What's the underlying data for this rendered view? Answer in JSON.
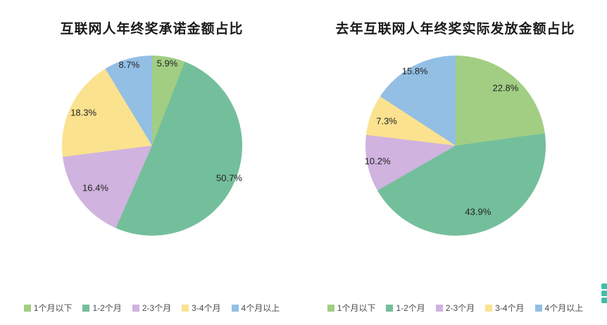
{
  "chart_data": [
    {
      "type": "pie",
      "title": "互联网人年终奖承诺金额占比",
      "categories": [
        "1个月以下",
        "1-2个月",
        "2-3个月",
        "3-4个月",
        "4个月以上"
      ],
      "values": [
        5.9,
        50.7,
        16.4,
        18.3,
        8.7
      ],
      "labels": [
        "5.9%",
        "50.7%",
        "16.4%",
        "18.3%",
        "8.7%"
      ],
      "colors": [
        "#a2ce84",
        "#74bf9b",
        "#d0b3df",
        "#fae28f",
        "#93bfe5"
      ],
      "start_angle_deg": 0,
      "direction": "clockwise",
      "label_radius": [
        0.93,
        0.93,
        0.78,
        0.84,
        0.93
      ],
      "legend_position": "bottom"
    },
    {
      "type": "pie",
      "title": "去年互联网人年终奖实际发放金额占比",
      "categories": [
        "1个月以下",
        "1-2个月",
        "2-3个月",
        "3-4个月",
        "4个月以上"
      ],
      "values": [
        22.8,
        43.9,
        10.2,
        7.3,
        15.8
      ],
      "labels": [
        "22.8%",
        "43.9%",
        "10.2%",
        "7.3%",
        "15.8%"
      ],
      "colors": [
        "#a2ce84",
        "#74bf9b",
        "#d0b3df",
        "#fae28f",
        "#93bfe5"
      ],
      "start_angle_deg": 0,
      "direction": "clockwise",
      "label_radius": [
        0.85,
        0.78,
        0.88,
        0.81,
        0.94
      ],
      "legend_position": "bottom"
    }
  ],
  "floating_widget": {
    "color": "#3fbfa8"
  }
}
